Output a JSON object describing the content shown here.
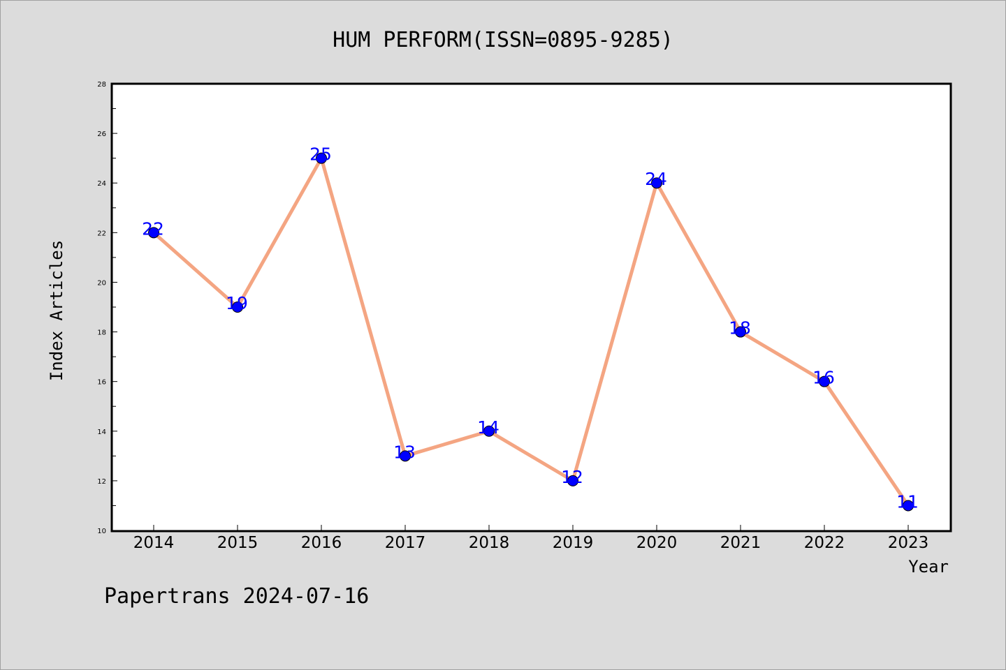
{
  "chart_data": {
    "type": "line",
    "title": "HUM PERFORM(ISSN=0895-9285)",
    "xlabel": "Year",
    "ylabel": "Index Articles",
    "categories": [
      "2014",
      "2015",
      "2016",
      "2017",
      "2018",
      "2019",
      "2020",
      "2021",
      "2022",
      "2023"
    ],
    "values": [
      22,
      19,
      25,
      13,
      14,
      12,
      24,
      18,
      16,
      11
    ],
    "ylim": [
      10,
      28
    ],
    "yticks": [
      10,
      12,
      14,
      16,
      18,
      20,
      22,
      24,
      26,
      28
    ],
    "grid": false,
    "line_color": "#f4a582",
    "marker_color": "#0000ff",
    "label_color": "#0000ff"
  },
  "footer": "Papertrans 2024-07-16",
  "colors": {
    "background": "#dcdcdc",
    "plot_background": "#ffffff"
  }
}
